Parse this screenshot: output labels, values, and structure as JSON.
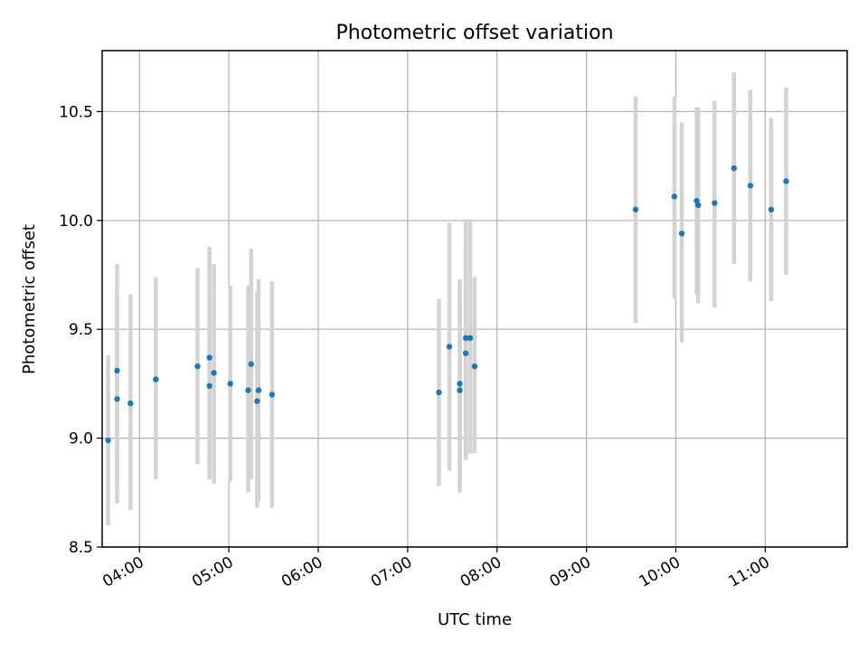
{
  "chart_data": {
    "type": "scatter",
    "title": "Photometric offset variation",
    "xlabel": "UTC time",
    "ylabel": "Photometric offset",
    "xlim": [
      "03:35",
      "11:55"
    ],
    "ylim": [
      8.5,
      10.78
    ],
    "x_ticks": [
      "04:00",
      "05:00",
      "06:00",
      "07:00",
      "08:00",
      "09:00",
      "10:00",
      "11:00"
    ],
    "y_ticks": [
      "8.5",
      "9.0",
      "9.5",
      "10.0",
      "10.5"
    ],
    "grid": true,
    "colors": {
      "points": "#1f77b4",
      "error_bars": "#d3d3d3",
      "grid": "#b0b0b0"
    },
    "series": [
      {
        "points": [
          {
            "x": "03:39",
            "y": 8.99,
            "ylow": 8.6,
            "yhigh": 9.38
          },
          {
            "x": "03:45",
            "y": 9.31,
            "ylow": 8.8,
            "yhigh": 9.8
          },
          {
            "x": "03:45",
            "y": 9.18,
            "ylow": 8.7,
            "yhigh": 9.66
          },
          {
            "x": "03:54",
            "y": 9.16,
            "ylow": 8.67,
            "yhigh": 9.66
          },
          {
            "x": "04:11",
            "y": 9.27,
            "ylow": 8.81,
            "yhigh": 9.74
          },
          {
            "x": "04:39",
            "y": 9.33,
            "ylow": 8.88,
            "yhigh": 9.78
          },
          {
            "x": "04:47",
            "y": 9.37,
            "ylow": 8.86,
            "yhigh": 9.88
          },
          {
            "x": "04:47",
            "y": 9.24,
            "ylow": 8.81,
            "yhigh": 9.67
          },
          {
            "x": "04:50",
            "y": 9.3,
            "ylow": 8.79,
            "yhigh": 9.8
          },
          {
            "x": "05:01",
            "y": 9.25,
            "ylow": 8.8,
            "yhigh": 9.7
          },
          {
            "x": "05:13",
            "y": 9.22,
            "ylow": 8.75,
            "yhigh": 9.7
          },
          {
            "x": "05:15",
            "y": 9.34,
            "ylow": 8.81,
            "yhigh": 9.87
          },
          {
            "x": "05:19",
            "y": 9.17,
            "ylow": 8.68,
            "yhigh": 9.67
          },
          {
            "x": "05:20",
            "y": 9.22,
            "ylow": 8.71,
            "yhigh": 9.73
          },
          {
            "x": "05:29",
            "y": 9.2,
            "ylow": 8.68,
            "yhigh": 9.72
          },
          {
            "x": "07:21",
            "y": 9.21,
            "ylow": 8.78,
            "yhigh": 9.64
          },
          {
            "x": "07:28",
            "y": 9.42,
            "ylow": 8.85,
            "yhigh": 9.99
          },
          {
            "x": "07:35",
            "y": 9.25,
            "ylow": 8.77,
            "yhigh": 9.73
          },
          {
            "x": "07:35",
            "y": 9.22,
            "ylow": 8.75,
            "yhigh": 9.64
          },
          {
            "x": "07:39",
            "y": 9.46,
            "ylow": 8.92,
            "yhigh": 10.0
          },
          {
            "x": "07:39",
            "y": 9.39,
            "ylow": 8.9,
            "yhigh": 9.88
          },
          {
            "x": "07:42",
            "y": 9.46,
            "ylow": 8.93,
            "yhigh": 10.0
          },
          {
            "x": "07:45",
            "y": 9.33,
            "ylow": 8.93,
            "yhigh": 9.74
          },
          {
            "x": "09:33",
            "y": 10.05,
            "ylow": 9.53,
            "yhigh": 10.57
          },
          {
            "x": "09:59",
            "y": 10.11,
            "ylow": 9.64,
            "yhigh": 10.57
          },
          {
            "x": "10:04",
            "y": 9.94,
            "ylow": 9.44,
            "yhigh": 10.45
          },
          {
            "x": "10:14",
            "y": 10.09,
            "ylow": 9.66,
            "yhigh": 10.52
          },
          {
            "x": "10:15",
            "y": 10.07,
            "ylow": 9.62,
            "yhigh": 10.52
          },
          {
            "x": "10:26",
            "y": 10.08,
            "ylow": 9.6,
            "yhigh": 10.55
          },
          {
            "x": "10:39",
            "y": 10.24,
            "ylow": 9.8,
            "yhigh": 10.68
          },
          {
            "x": "10:50",
            "y": 10.16,
            "ylow": 9.72,
            "yhigh": 10.6
          },
          {
            "x": "11:04",
            "y": 10.05,
            "ylow": 9.63,
            "yhigh": 10.47
          },
          {
            "x": "11:14",
            "y": 10.18,
            "ylow": 9.75,
            "yhigh": 10.61
          }
        ]
      }
    ]
  }
}
